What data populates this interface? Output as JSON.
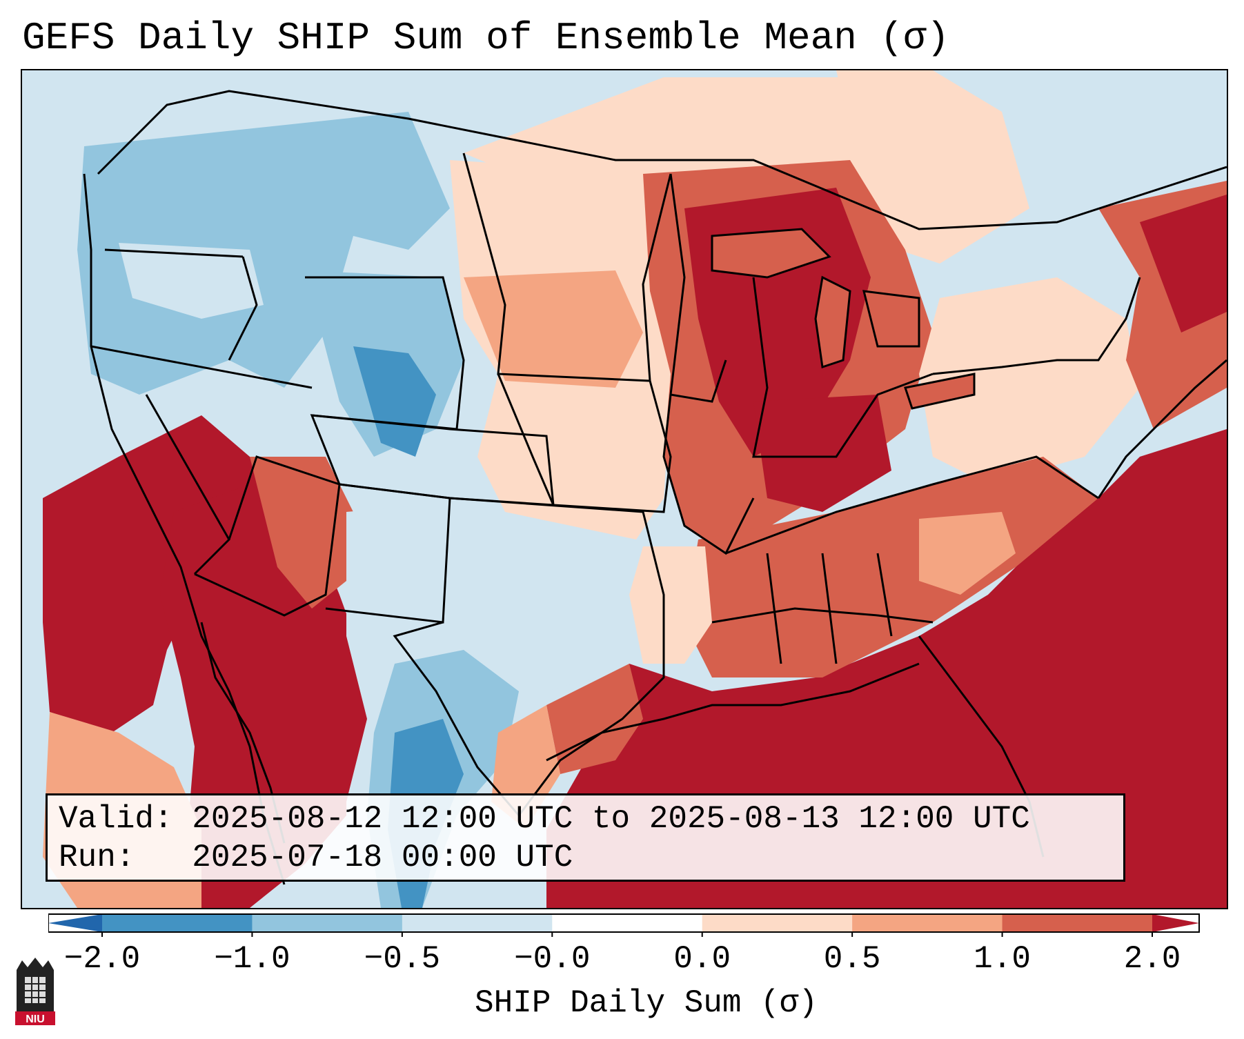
{
  "title": "GEFS Daily SHIP Sum of Ensemble Mean (σ)",
  "info": {
    "valid_line": "Valid: 2025-08-12 12:00 UTC to 2025-08-13 12:00 UTC",
    "run_line": "Run:   2025-07-18 00:00 UTC"
  },
  "colorbar": {
    "label": "SHIP Daily Sum (σ)",
    "ticks": [
      "−2.0",
      "−1.0",
      "−0.5",
      "−0.0",
      "0.0",
      "0.5",
      "1.0",
      "2.0"
    ],
    "colors": [
      "#2166ac",
      "#4393c3",
      "#92c5de",
      "#d1e5f0",
      "#fddbc7",
      "#f4a582",
      "#d6604d",
      "#b2182b"
    ],
    "neutral_color": "#ffffff",
    "extend": "both"
  },
  "map": {
    "projection": "Lambert Conformal (CONUS)",
    "field": "SHIP daily sum anomaly",
    "notable_regions": [
      {
        "region": "Southeast US / Gulf / Atlantic",
        "level": "≥ 2.0"
      },
      {
        "region": "Great Lakes / Upper Midwest",
        "level": "1.0 to 2.0"
      },
      {
        "region": "Desert Southwest / Baja",
        "level": "≥ 2.0"
      },
      {
        "region": "Northwest / Northern Rockies",
        "level": "−1.0 to −0.5"
      },
      {
        "region": "South Texas / northern Mexico",
        "level": "−2.0 to −1.0"
      }
    ]
  },
  "logo": {
    "text": "NIU"
  }
}
